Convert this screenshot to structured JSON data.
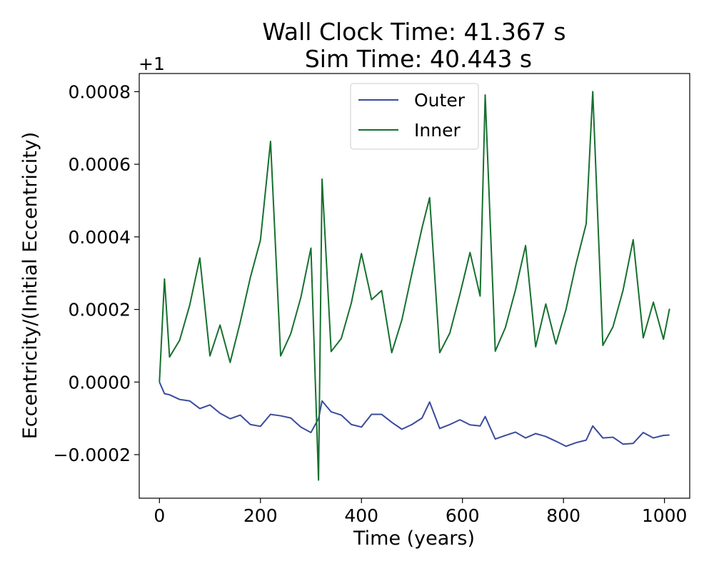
{
  "chart_data": {
    "type": "line",
    "title": "Wall Clock Time: 41.367 s",
    "subtitle": "Sim Time: 40.443 s",
    "xlabel": "Time (years)",
    "ylabel": "Eccentricity/(Initial Eccentricity)",
    "y_offset_label": "+1",
    "xlim": [
      -40,
      1050
    ],
    "ylim": [
      -0.00032,
      0.00085
    ],
    "xticks": [
      0,
      200,
      400,
      600,
      800,
      1000
    ],
    "xtick_labels": [
      "0",
      "200",
      "400",
      "600",
      "800",
      "1000"
    ],
    "yticks": [
      -0.0002,
      0.0,
      0.0002,
      0.0004,
      0.0006,
      0.0008
    ],
    "ytick_labels": [
      "−0.0002",
      "0.0000",
      "0.0002",
      "0.0004",
      "0.0006",
      "0.0008"
    ],
    "grid": false,
    "legend_position": "top-center",
    "series": [
      {
        "name": "Outer",
        "color": "#3a4b9c",
        "x": [
          0,
          10,
          20,
          40,
          60,
          80,
          100,
          120,
          140,
          160,
          180,
          200,
          220,
          240,
          260,
          280,
          300,
          315,
          322,
          340,
          360,
          380,
          400,
          420,
          440,
          460,
          480,
          500,
          520,
          535,
          555,
          575,
          595,
          615,
          635,
          645,
          665,
          685,
          705,
          725,
          745,
          765,
          785,
          805,
          825,
          845,
          858,
          878,
          898,
          918,
          938,
          958,
          978,
          998,
          1010
        ],
        "y": [
          0.0,
          -3.2e-05,
          -3.5e-05,
          -4.8e-05,
          -5.2e-05,
          -7.3e-05,
          -6.3e-05,
          -8.6e-05,
          -0.000101,
          -9.1e-05,
          -0.000117,
          -0.000122,
          -8.9e-05,
          -9.3e-05,
          -9.9e-05,
          -0.000124,
          -0.000139,
          -0.000101,
          -5.2e-05,
          -8.2e-05,
          -9.1e-05,
          -0.000117,
          -0.000124,
          -8.9e-05,
          -8.9e-05,
          -0.000111,
          -0.00013,
          -0.000117,
          -9.9e-05,
          -5.5e-05,
          -0.000128,
          -0.000117,
          -0.000104,
          -0.000118,
          -0.000121,
          -9.5e-05,
          -0.000157,
          -0.000147,
          -0.000138,
          -0.000154,
          -0.000142,
          -0.00015,
          -0.000163,
          -0.000177,
          -0.000167,
          -0.00016,
          -0.000121,
          -0.000154,
          -0.000152,
          -0.000171,
          -0.000169,
          -0.000139,
          -0.000154,
          -0.000147,
          -0.000146
        ]
      },
      {
        "name": "Inner",
        "color": "#16702e",
        "x": [
          0,
          10,
          20,
          40,
          60,
          80,
          100,
          120,
          140,
          160,
          180,
          200,
          220,
          240,
          260,
          280,
          300,
          315,
          322,
          340,
          360,
          380,
          400,
          420,
          440,
          460,
          480,
          500,
          520,
          535,
          555,
          575,
          595,
          615,
          635,
          645,
          665,
          685,
          705,
          725,
          745,
          765,
          785,
          805,
          825,
          845,
          858,
          878,
          898,
          918,
          938,
          958,
          978,
          998,
          1010
        ],
        "y": [
          0.0,
          0.000284,
          6.9e-05,
          0.000115,
          0.000212,
          0.000342,
          7.2e-05,
          0.000157,
          5.4e-05,
          0.000165,
          0.000288,
          0.000391,
          0.000663,
          7.2e-05,
          0.000133,
          0.000233,
          0.000369,
          -0.00027,
          0.000559,
          8.4e-05,
          0.00012,
          0.000218,
          0.000354,
          0.000227,
          0.000252,
          8.1e-05,
          0.000171,
          0.0003,
          0.000425,
          0.000508,
          8.1e-05,
          0.000135,
          0.000242,
          0.000357,
          0.000237,
          0.000791,
          8.5e-05,
          0.00015,
          0.000254,
          0.000376,
          9.7e-05,
          0.000215,
          0.000105,
          0.0002,
          0.000326,
          0.000436,
          0.0008,
          0.000101,
          0.000152,
          0.000253,
          0.000392,
          0.000122,
          0.00022,
          0.000118,
          0.000202
        ]
      }
    ]
  }
}
